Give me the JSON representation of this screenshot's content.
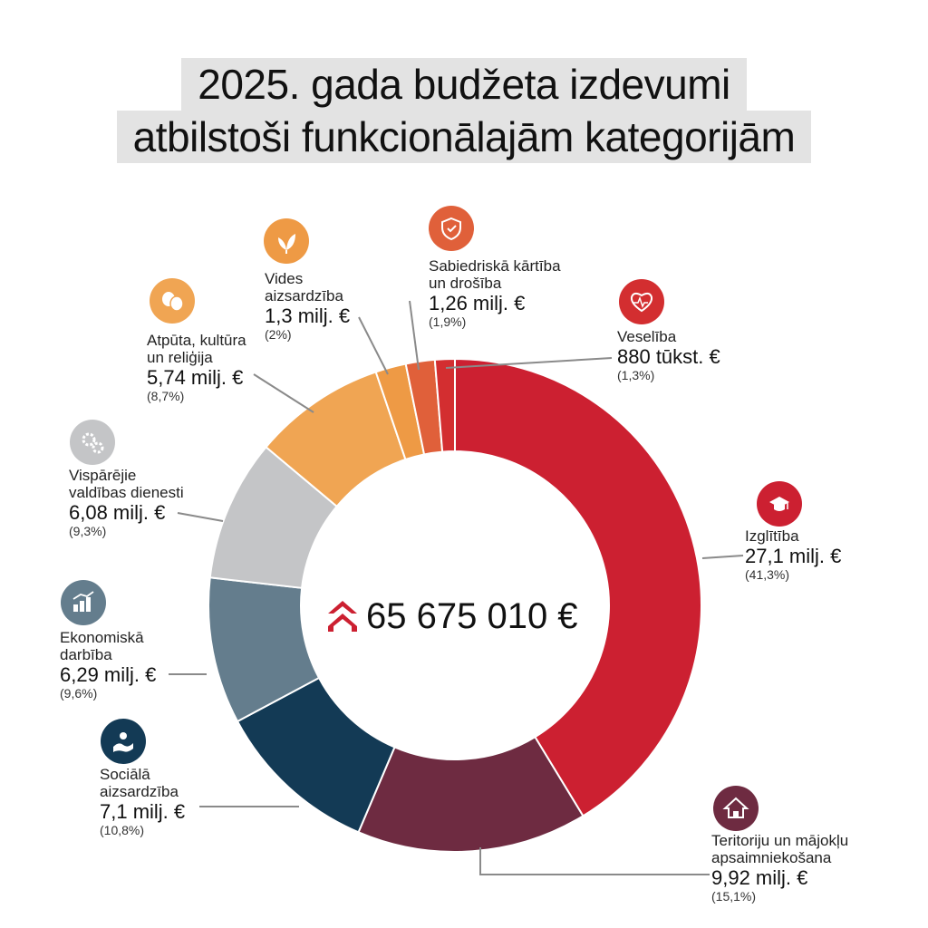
{
  "title": {
    "line1": "2025. gada budžeta izdevumi",
    "line2": "atbilstoši funkcionālajām kategorijām"
  },
  "total": "65 675 010 €",
  "chart_data": {
    "type": "donut",
    "title": "2025. gada budžeta izdevumi atbilstoši funkcionālajām kategorijām",
    "total": "65 675 010 €",
    "slices": [
      {
        "name": "Izglītība",
        "value_label": "27,1 milj. €",
        "percent": 41.3,
        "percent_label": "(41,3%)",
        "color": "#cc2031",
        "icon": "graduation-cap-icon"
      },
      {
        "name": "Teritoriju un mājokļu\napsaimniekošana",
        "value_label": "9,92 milj. €",
        "percent": 15.1,
        "percent_label": "(15,1%)",
        "color": "#6e2b41",
        "icon": "house-icon"
      },
      {
        "name": "Sociālā\naizsardzība",
        "value_label": "7,1 milj. €",
        "percent": 10.8,
        "percent_label": "(10,8%)",
        "color": "#133a55",
        "icon": "hand-care-icon"
      },
      {
        "name": "Ekonomiskā\ndarbība",
        "value_label": "6,29 milj. €",
        "percent": 9.6,
        "percent_label": "(9,6%)",
        "color": "#647d8d",
        "icon": "growth-chart-icon"
      },
      {
        "name": "Vispārējie\nvaldības dienesti",
        "value_label": "6,08 milj. €",
        "percent": 9.3,
        "percent_label": "(9,3%)",
        "color": "#c4c5c7",
        "icon": "gears-icon"
      },
      {
        "name": "Atpūta, kultūra\nun reliģija",
        "value_label": "5,74 milj. €",
        "percent": 8.7,
        "percent_label": "(8,7%)",
        "color": "#f0a553",
        "icon": "theater-masks-icon"
      },
      {
        "name": "Vides\naizsardzība",
        "value_label": "1,3 milj. €",
        "percent": 2.0,
        "percent_label": "(2%)",
        "color": "#ee9a45",
        "icon": "leaf-icon"
      },
      {
        "name": "Sabiedriskā kārtība\nun drošība",
        "value_label": "1,26 milj. €",
        "percent": 1.9,
        "percent_label": "(1,9%)",
        "color": "#e0603a",
        "icon": "shield-icon"
      },
      {
        "name": "Veselība",
        "value_label": "880 tūkst. €",
        "percent": 1.3,
        "percent_label": "(1,3%)",
        "color": "#d32e30",
        "icon": "heart-icon"
      }
    ]
  }
}
